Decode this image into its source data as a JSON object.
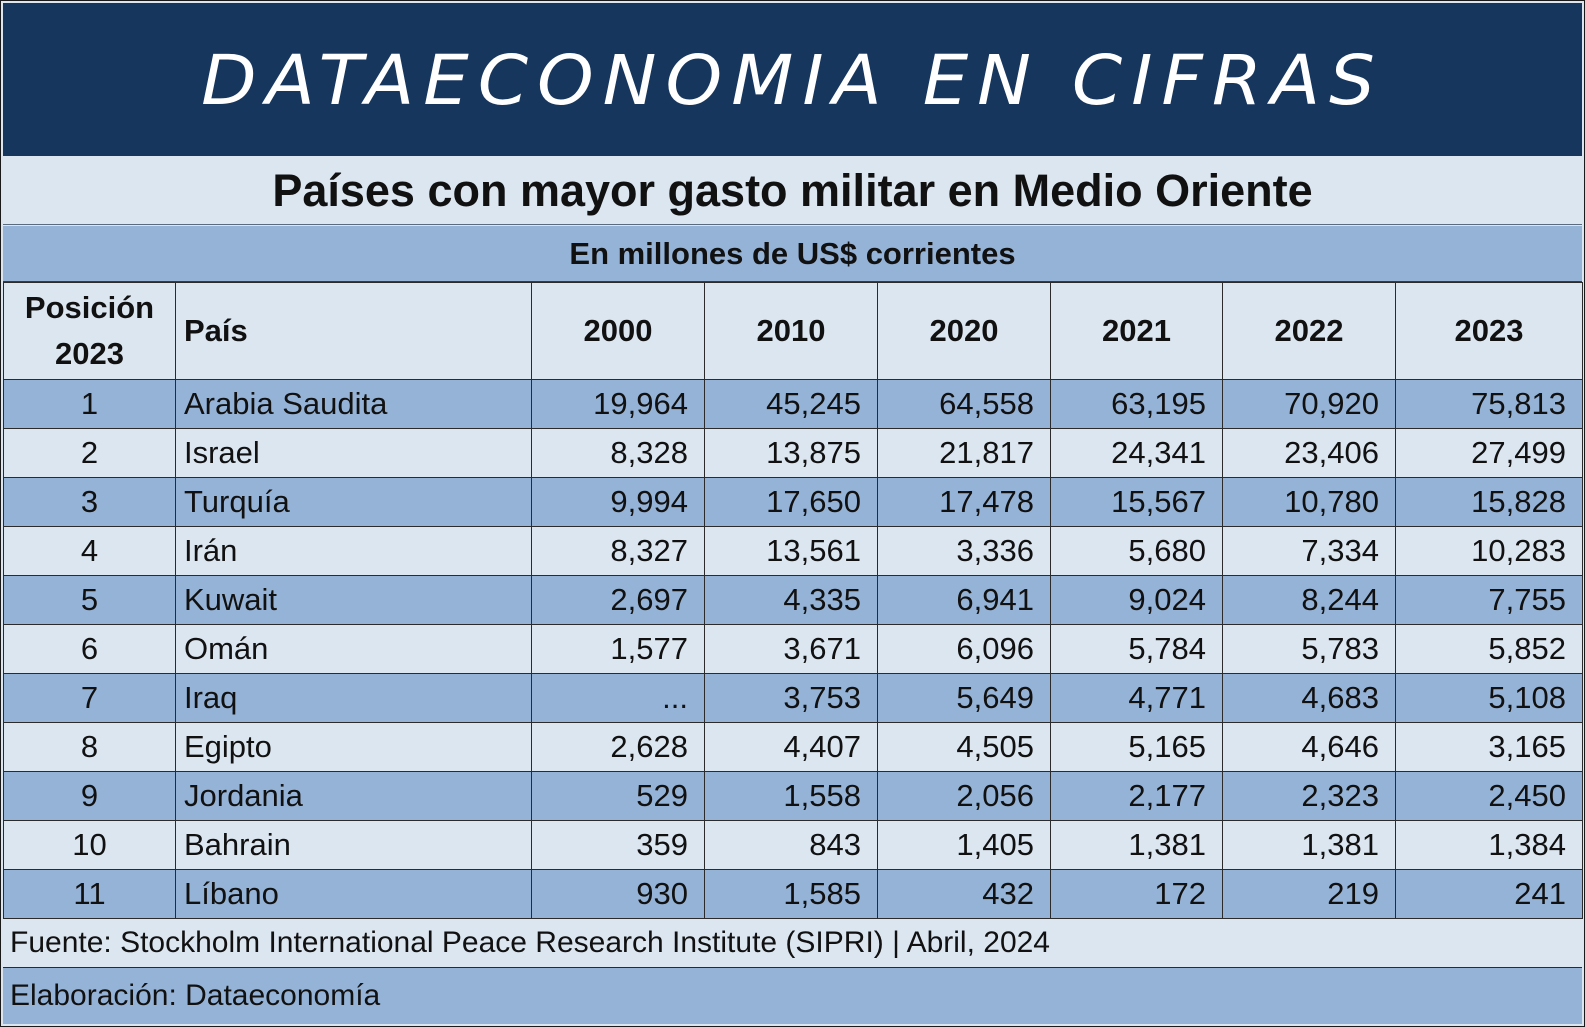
{
  "banner": {
    "title": "DATAECONOMIA EN CIFRAS"
  },
  "title": "Países con mayor gasto militar en Medio Oriente",
  "subtitle": "En millones de US$ corrientes",
  "colors": {
    "banner": "#17365d",
    "band_dark": "#95b3d7",
    "band_light": "#dce6f1"
  },
  "chart_data": {
    "type": "table",
    "title": "Países con mayor gasto militar en Medio Oriente",
    "subtitle": "En millones de US$ corrientes",
    "columns": [
      "Posición 2023",
      "País",
      "2000",
      "2010",
      "2020",
      "2021",
      "2022",
      "2023"
    ],
    "header": {
      "position_line1": "Posición",
      "position_line2": "2023",
      "country": "País",
      "years": [
        "2000",
        "2010",
        "2020",
        "2021",
        "2022",
        "2023"
      ]
    },
    "rows": [
      {
        "pos": "1",
        "country": "Arabia Saudita",
        "values": [
          "19,964",
          "45,245",
          "64,558",
          "63,195",
          "70,920",
          "75,813"
        ]
      },
      {
        "pos": "2",
        "country": "Israel",
        "values": [
          "8,328",
          "13,875",
          "21,817",
          "24,341",
          "23,406",
          "27,499"
        ]
      },
      {
        "pos": "3",
        "country": "Turquía",
        "values": [
          "9,994",
          "17,650",
          "17,478",
          "15,567",
          "10,780",
          "15,828"
        ]
      },
      {
        "pos": "4",
        "country": "Irán",
        "values": [
          "8,327",
          "13,561",
          "3,336",
          "5,680",
          "7,334",
          "10,283"
        ]
      },
      {
        "pos": "5",
        "country": "Kuwait",
        "values": [
          "2,697",
          "4,335",
          "6,941",
          "9,024",
          "8,244",
          "7,755"
        ]
      },
      {
        "pos": "6",
        "country": "Omán",
        "values": [
          "1,577",
          "3,671",
          "6,096",
          "5,784",
          "5,783",
          "5,852"
        ]
      },
      {
        "pos": "7",
        "country": "Iraq",
        "values": [
          "...",
          "3,753",
          "5,649",
          "4,771",
          "4,683",
          "5,108"
        ]
      },
      {
        "pos": "8",
        "country": "Egipto",
        "values": [
          "2,628",
          "4,407",
          "4,505",
          "5,165",
          "4,646",
          "3,165"
        ]
      },
      {
        "pos": "9",
        "country": "Jordania",
        "values": [
          "529",
          "1,558",
          "2,056",
          "2,177",
          "2,323",
          "2,450"
        ]
      },
      {
        "pos": "10",
        "country": "Bahrain",
        "values": [
          "359",
          "843",
          "1,405",
          "1,381",
          "1,381",
          "1,384"
        ]
      },
      {
        "pos": "11",
        "country": "Líbano",
        "values": [
          "930",
          "1,585",
          "432",
          "172",
          "219",
          "241"
        ]
      }
    ]
  },
  "footer": {
    "source": "Fuente: Stockholm International Peace Research Institute (SIPRI) | Abril, 2024",
    "credit": "Elaboración: Dataeconomía"
  }
}
